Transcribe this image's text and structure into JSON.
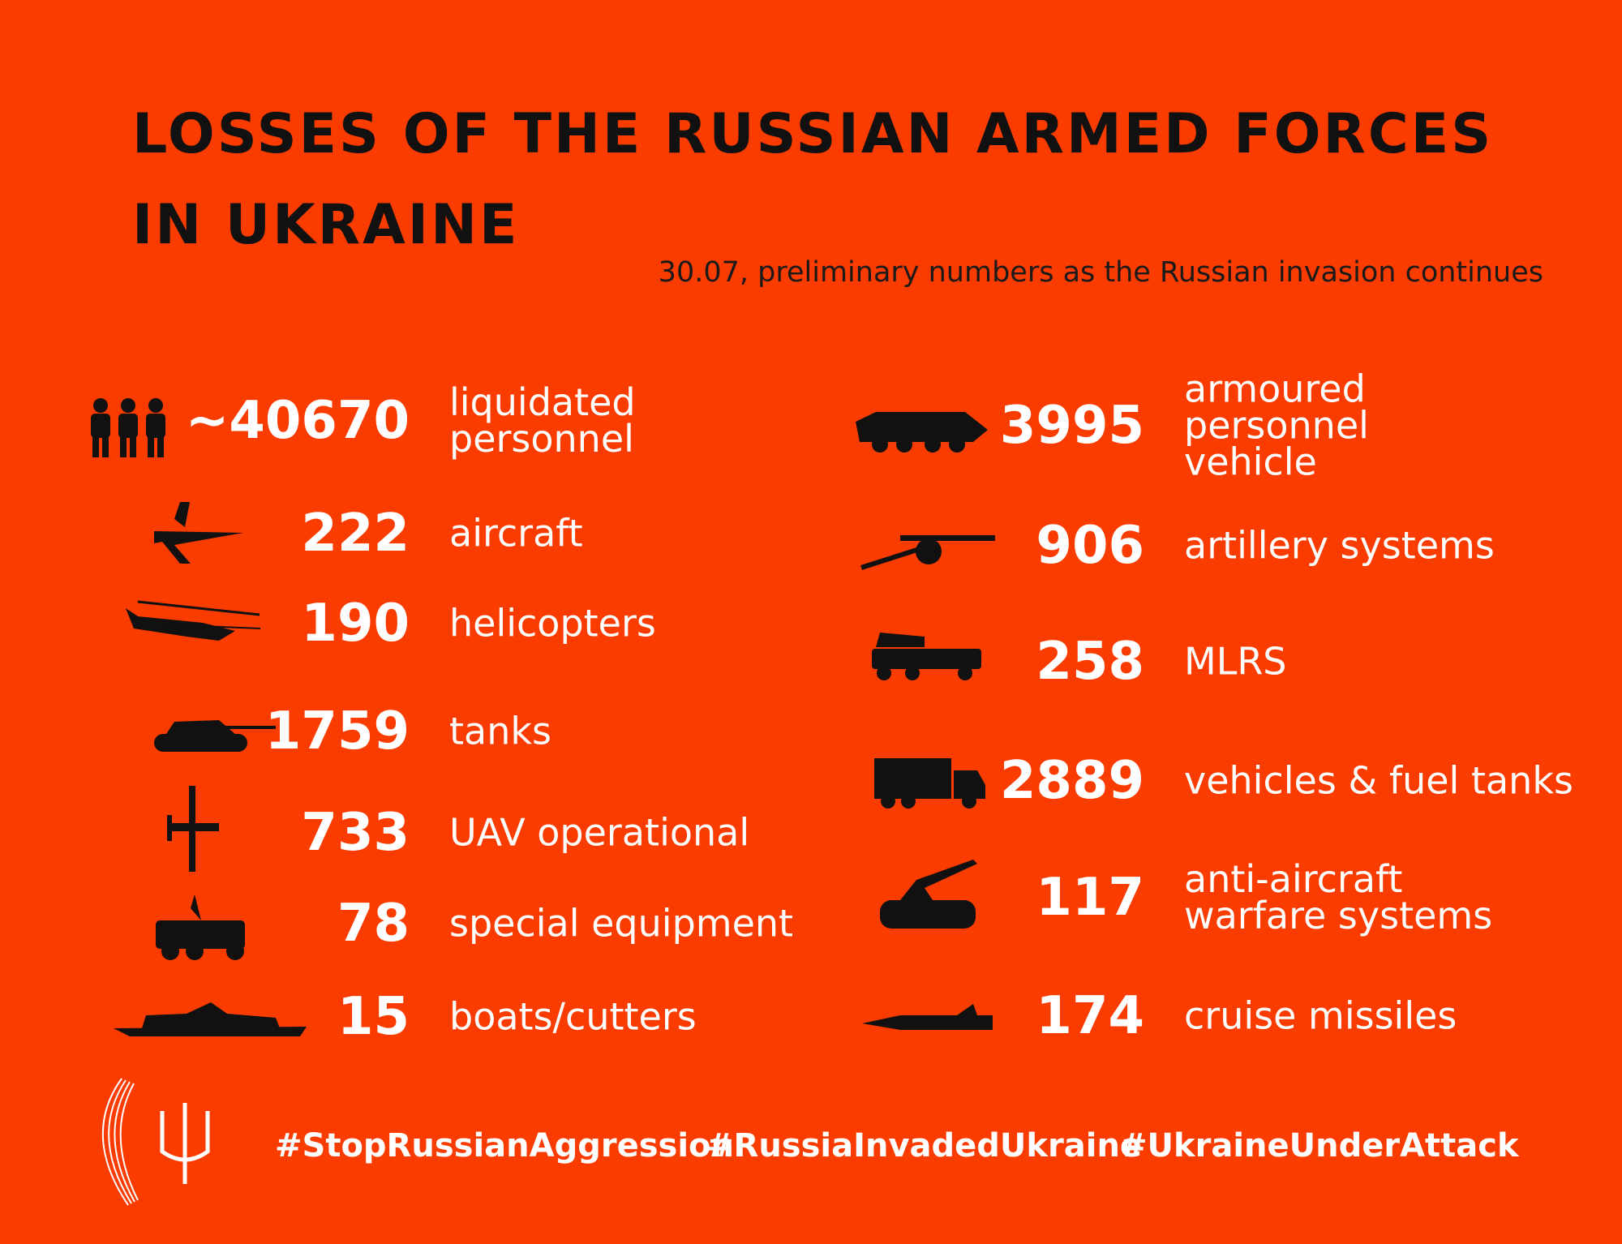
{
  "header": {
    "title": [
      "LOSSES OF THE RUSSIAN ARMED FORCES",
      "IN UKRAINE"
    ],
    "subtitle": "30.07, preliminary numbers as the Russian invasion continues"
  },
  "left_items": [
    {
      "value": "~40670",
      "label": [
        "liquidated",
        "personnel"
      ]
    },
    {
      "value": "222",
      "label": [
        "aircraft"
      ]
    },
    {
      "value": "190",
      "label": [
        "helicopters"
      ]
    },
    {
      "value": "1759",
      "label": [
        "tanks"
      ]
    },
    {
      "value": "733",
      "label": [
        "UAV operational"
      ]
    },
    {
      "value": "78",
      "label": [
        "special equipment"
      ]
    },
    {
      "value": "15",
      "label": [
        "boats/cutters"
      ]
    }
  ],
  "right_items": [
    {
      "value": "3995",
      "label": [
        "armoured",
        "personnel",
        "vehicle"
      ]
    },
    {
      "value": "906",
      "label": [
        "artillery systems"
      ]
    },
    {
      "value": "258",
      "label": [
        "MLRS"
      ]
    },
    {
      "value": "2889",
      "label": [
        "vehicles & fuel tanks"
      ]
    },
    {
      "value": "117",
      "label": [
        "anti-aircraft",
        "warfare systems"
      ]
    },
    {
      "value": "174",
      "label": [
        "cruise missiles"
      ]
    }
  ],
  "footer": {
    "hashtags": [
      "#StopRussianAggression",
      "#RussiaInvadedUkraine",
      "#UkraineUnderAttack"
    ]
  }
}
